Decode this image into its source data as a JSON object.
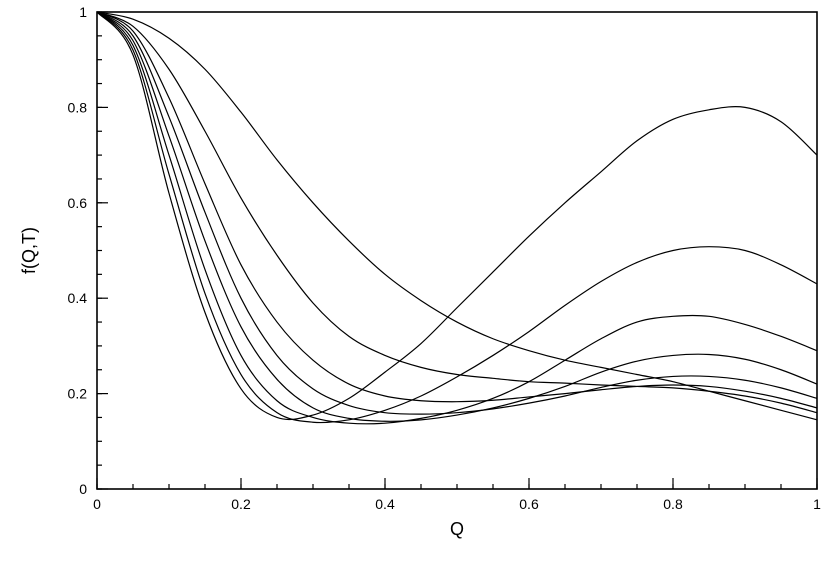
{
  "chart_data": {
    "type": "line",
    "title": "",
    "xlabel": "Q",
    "ylabel": "f(Q,T)",
    "xlim": [
      0,
      1
    ],
    "ylim": [
      0,
      1
    ],
    "grid": false,
    "legend": "none",
    "line_color": "#000000",
    "x_ticks": [
      {
        "value": 0,
        "label": "0"
      },
      {
        "value": 0.2,
        "label": "0.2"
      },
      {
        "value": 0.4,
        "label": "0.4"
      },
      {
        "value": 0.6,
        "label": "0.6"
      },
      {
        "value": 0.8,
        "label": "0.8"
      },
      {
        "value": 1,
        "label": "1"
      }
    ],
    "y_ticks": [
      {
        "value": 0,
        "label": "0"
      },
      {
        "value": 0.2,
        "label": "0.2"
      },
      {
        "value": 0.4,
        "label": "0.4"
      },
      {
        "value": 0.6,
        "label": "0.6"
      },
      {
        "value": 0.8,
        "label": "0.8"
      },
      {
        "value": 1,
        "label": "1"
      }
    ],
    "x_minor_step": 0.05,
    "y_minor_step": 0.05,
    "series": [
      {
        "x": [
          0,
          0.05,
          0.1,
          0.15,
          0.2,
          0.25,
          0.3,
          0.35,
          0.4,
          0.45,
          0.5,
          0.55,
          0.6,
          0.65,
          0.7,
          0.75,
          0.8,
          0.85,
          0.9,
          0.95,
          1.0
        ],
        "y": [
          1.0,
          0.985,
          0.945,
          0.88,
          0.79,
          0.69,
          0.6,
          0.52,
          0.45,
          0.395,
          0.35,
          0.315,
          0.29,
          0.27,
          0.255,
          0.24,
          0.225,
          0.205,
          0.185,
          0.165,
          0.145
        ]
      },
      {
        "x": [
          0,
          0.05,
          0.1,
          0.15,
          0.2,
          0.25,
          0.3,
          0.35,
          0.4,
          0.45,
          0.5,
          0.55,
          0.6,
          0.65,
          0.7,
          0.75,
          0.8,
          0.85,
          0.9,
          0.95,
          1.0
        ],
        "y": [
          1.0,
          0.97,
          0.88,
          0.75,
          0.61,
          0.49,
          0.39,
          0.32,
          0.28,
          0.255,
          0.24,
          0.232,
          0.225,
          0.222,
          0.218,
          0.215,
          0.212,
          0.205,
          0.195,
          0.18,
          0.16
        ]
      },
      {
        "x": [
          0,
          0.05,
          0.1,
          0.15,
          0.2,
          0.25,
          0.3,
          0.35,
          0.4,
          0.45,
          0.5,
          0.55,
          0.6,
          0.65,
          0.7,
          0.75,
          0.8,
          0.85,
          0.9,
          0.95,
          1.0
        ],
        "y": [
          1.0,
          0.96,
          0.82,
          0.64,
          0.47,
          0.35,
          0.27,
          0.22,
          0.195,
          0.185,
          0.183,
          0.186,
          0.193,
          0.2,
          0.208,
          0.215,
          0.218,
          0.215,
          0.205,
          0.19,
          0.17
        ]
      },
      {
        "x": [
          0,
          0.05,
          0.1,
          0.15,
          0.2,
          0.25,
          0.3,
          0.35,
          0.4,
          0.45,
          0.5,
          0.55,
          0.6,
          0.65,
          0.7,
          0.75,
          0.8,
          0.85,
          0.9,
          0.95,
          1.0
        ],
        "y": [
          1.0,
          0.95,
          0.78,
          0.58,
          0.4,
          0.28,
          0.21,
          0.175,
          0.16,
          0.157,
          0.16,
          0.168,
          0.18,
          0.195,
          0.213,
          0.228,
          0.236,
          0.236,
          0.228,
          0.212,
          0.19
        ]
      },
      {
        "x": [
          0,
          0.05,
          0.1,
          0.15,
          0.2,
          0.25,
          0.3,
          0.35,
          0.4,
          0.45,
          0.5,
          0.55,
          0.6,
          0.65,
          0.7,
          0.75,
          0.8,
          0.85,
          0.9,
          0.95,
          1.0
        ],
        "y": [
          1.0,
          0.94,
          0.74,
          0.52,
          0.34,
          0.23,
          0.17,
          0.148,
          0.142,
          0.145,
          0.155,
          0.17,
          0.19,
          0.215,
          0.245,
          0.268,
          0.28,
          0.282,
          0.272,
          0.25,
          0.22
        ]
      },
      {
        "x": [
          0,
          0.05,
          0.1,
          0.15,
          0.2,
          0.25,
          0.3,
          0.35,
          0.4,
          0.45,
          0.5,
          0.55,
          0.6,
          0.65,
          0.7,
          0.75,
          0.8,
          0.85,
          0.9,
          0.95,
          1.0
        ],
        "y": [
          1.0,
          0.93,
          0.7,
          0.46,
          0.28,
          0.185,
          0.15,
          0.138,
          0.138,
          0.148,
          0.165,
          0.19,
          0.225,
          0.27,
          0.315,
          0.35,
          0.362,
          0.362,
          0.345,
          0.32,
          0.29
        ]
      },
      {
        "x": [
          0,
          0.05,
          0.1,
          0.15,
          0.2,
          0.25,
          0.3,
          0.35,
          0.4,
          0.45,
          0.5,
          0.55,
          0.6,
          0.65,
          0.7,
          0.75,
          0.8,
          0.85,
          0.9,
          0.95,
          1.0
        ],
        "y": [
          1.0,
          0.92,
          0.66,
          0.41,
          0.24,
          0.16,
          0.14,
          0.145,
          0.165,
          0.195,
          0.235,
          0.28,
          0.33,
          0.385,
          0.435,
          0.475,
          0.5,
          0.508,
          0.5,
          0.47,
          0.43
        ]
      },
      {
        "x": [
          0,
          0.05,
          0.1,
          0.15,
          0.2,
          0.25,
          0.3,
          0.35,
          0.4,
          0.45,
          0.5,
          0.55,
          0.6,
          0.65,
          0.7,
          0.75,
          0.8,
          0.85,
          0.9,
          0.95,
          1.0
        ],
        "y": [
          1.0,
          0.91,
          0.62,
          0.37,
          0.21,
          0.15,
          0.155,
          0.19,
          0.245,
          0.305,
          0.38,
          0.455,
          0.53,
          0.6,
          0.665,
          0.73,
          0.775,
          0.795,
          0.8,
          0.77,
          0.7
        ]
      }
    ]
  }
}
